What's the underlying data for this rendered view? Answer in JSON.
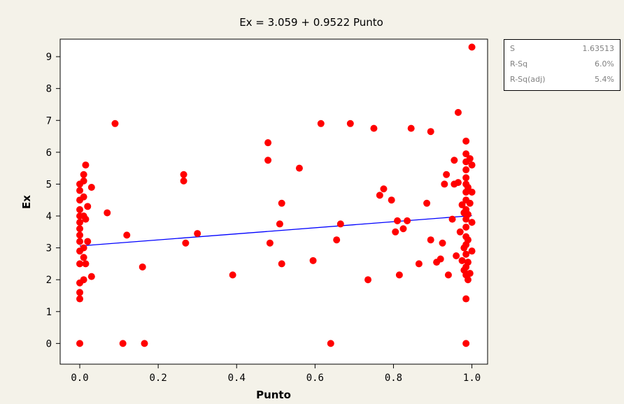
{
  "chart_data": {
    "type": "scatter",
    "title": "Ex =  3.059 + 0.9522 Punto",
    "xlabel": "Punto",
    "ylabel": "Ex",
    "xlim": [
      -0.05,
      1.04
    ],
    "ylim": [
      -0.65,
      9.55
    ],
    "xticks": [
      "0.0",
      "0.2",
      "0.4",
      "0.6",
      "0.8",
      "1.0"
    ],
    "yticks": [
      "0",
      "1",
      "2",
      "3",
      "4",
      "5",
      "6",
      "7",
      "8",
      "9"
    ],
    "grid": false,
    "marker_color": "#ff0000",
    "line_color": "#0000ff",
    "fit": {
      "intercept": 3.059,
      "slope": 0.9522,
      "x_range": [
        0.0,
        1.0
      ]
    },
    "points": [
      [
        0.0,
        0.0
      ],
      [
        0.0,
        1.4
      ],
      [
        0.0,
        1.6
      ],
      [
        0.0,
        1.9
      ],
      [
        0.0,
        2.5
      ],
      [
        0.0,
        2.9
      ],
      [
        0.0,
        3.2
      ],
      [
        0.0,
        3.4
      ],
      [
        0.0,
        3.6
      ],
      [
        0.0,
        3.8
      ],
      [
        0.0,
        4.0
      ],
      [
        0.0,
        4.2
      ],
      [
        0.0,
        4.5
      ],
      [
        0.0,
        4.8
      ],
      [
        0.0,
        5.0
      ],
      [
        0.01,
        2.0
      ],
      [
        0.01,
        2.7
      ],
      [
        0.01,
        3.0
      ],
      [
        0.01,
        4.0
      ],
      [
        0.01,
        4.6
      ],
      [
        0.01,
        5.1
      ],
      [
        0.01,
        5.3
      ],
      [
        0.015,
        5.6
      ],
      [
        0.015,
        3.9
      ],
      [
        0.015,
        2.5
      ],
      [
        0.02,
        4.3
      ],
      [
        0.02,
        3.2
      ],
      [
        0.03,
        4.9
      ],
      [
        0.03,
        2.1
      ],
      [
        0.07,
        4.1
      ],
      [
        0.09,
        6.9
      ],
      [
        0.11,
        0.0
      ],
      [
        0.12,
        3.4
      ],
      [
        0.16,
        2.4
      ],
      [
        0.165,
        0.0
      ],
      [
        0.265,
        5.1
      ],
      [
        0.265,
        5.3
      ],
      [
        0.27,
        3.15
      ],
      [
        0.3,
        3.45
      ],
      [
        0.39,
        2.15
      ],
      [
        0.48,
        6.3
      ],
      [
        0.48,
        5.75
      ],
      [
        0.485,
        3.15
      ],
      [
        0.51,
        3.75
      ],
      [
        0.515,
        4.4
      ],
      [
        0.515,
        2.5
      ],
      [
        0.56,
        5.5
      ],
      [
        0.595,
        2.6
      ],
      [
        0.615,
        6.9
      ],
      [
        0.64,
        0.0
      ],
      [
        0.655,
        3.25
      ],
      [
        0.665,
        3.75
      ],
      [
        0.69,
        6.9
      ],
      [
        0.735,
        2.0
      ],
      [
        0.75,
        6.75
      ],
      [
        0.765,
        4.65
      ],
      [
        0.775,
        4.85
      ],
      [
        0.795,
        4.5
      ],
      [
        0.805,
        3.5
      ],
      [
        0.81,
        3.85
      ],
      [
        0.815,
        2.15
      ],
      [
        0.825,
        3.6
      ],
      [
        0.835,
        3.85
      ],
      [
        0.845,
        6.75
      ],
      [
        0.865,
        2.5
      ],
      [
        0.885,
        4.4
      ],
      [
        0.895,
        6.65
      ],
      [
        0.895,
        3.25
      ],
      [
        0.91,
        2.55
      ],
      [
        0.92,
        2.65
      ],
      [
        0.925,
        3.15
      ],
      [
        0.93,
        5.0
      ],
      [
        0.935,
        5.3
      ],
      [
        0.94,
        2.15
      ],
      [
        0.95,
        3.9
      ],
      [
        0.955,
        5.75
      ],
      [
        0.955,
        5.0
      ],
      [
        0.96,
        2.75
      ],
      [
        0.965,
        7.25
      ],
      [
        0.965,
        5.05
      ],
      [
        0.97,
        3.5
      ],
      [
        0.975,
        4.35
      ],
      [
        0.975,
        2.6
      ],
      [
        0.98,
        2.3
      ],
      [
        0.98,
        4.1
      ],
      [
        0.98,
        3.0
      ],
      [
        0.985,
        6.35
      ],
      [
        0.985,
        0.0
      ],
      [
        0.985,
        1.4
      ],
      [
        0.985,
        2.15
      ],
      [
        0.985,
        2.4
      ],
      [
        0.985,
        2.8
      ],
      [
        0.985,
        3.1
      ],
      [
        0.985,
        3.35
      ],
      [
        0.985,
        3.65
      ],
      [
        0.985,
        3.9
      ],
      [
        0.985,
        4.2
      ],
      [
        0.985,
        4.5
      ],
      [
        0.985,
        4.75
      ],
      [
        0.985,
        5.0
      ],
      [
        0.985,
        5.2
      ],
      [
        0.985,
        5.45
      ],
      [
        0.985,
        5.7
      ],
      [
        0.985,
        5.95
      ],
      [
        0.99,
        2.0
      ],
      [
        0.99,
        2.55
      ],
      [
        0.99,
        3.25
      ],
      [
        0.99,
        4.05
      ],
      [
        0.99,
        4.9
      ],
      [
        0.995,
        5.8
      ],
      [
        0.995,
        4.4
      ],
      [
        0.995,
        2.2
      ],
      [
        1.0,
        9.3
      ],
      [
        1.0,
        5.6
      ],
      [
        1.0,
        4.75
      ],
      [
        1.0,
        3.8
      ],
      [
        1.0,
        2.9
      ]
    ]
  },
  "stats": [
    {
      "label": "S",
      "value": "1.63513"
    },
    {
      "label": "R-Sq",
      "value": "6.0%"
    },
    {
      "label": "R-Sq(adj)",
      "value": "5.4%"
    }
  ]
}
